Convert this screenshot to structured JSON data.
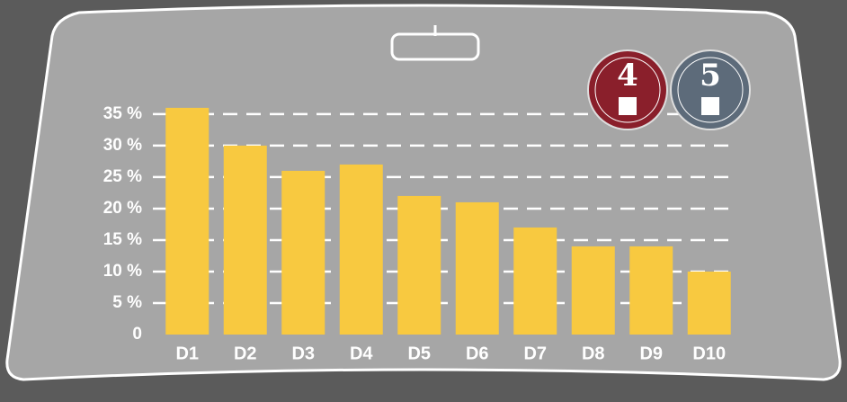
{
  "chart_data": {
    "type": "bar",
    "categories": [
      "D1",
      "D2",
      "D3",
      "D4",
      "D5",
      "D6",
      "D7",
      "D8",
      "D9",
      "D10"
    ],
    "values": [
      36,
      30,
      26,
      27,
      22,
      21,
      17,
      14,
      14,
      10
    ],
    "color": "#f8c940",
    "ylim": [
      0,
      35.7
    ],
    "yticks": [
      {
        "value": 0,
        "label": "0"
      },
      {
        "value": 5,
        "label": "5 %"
      },
      {
        "value": 10,
        "label": "10 %"
      },
      {
        "value": 15,
        "label": "15 %"
      },
      {
        "value": 20,
        "label": "20 %"
      },
      {
        "value": 25,
        "label": "25 %"
      },
      {
        "value": 30,
        "label": "30 %"
      },
      {
        "value": 35,
        "label": "35 %"
      }
    ],
    "grid": true,
    "annotations": [
      "4",
      "5"
    ]
  }
}
